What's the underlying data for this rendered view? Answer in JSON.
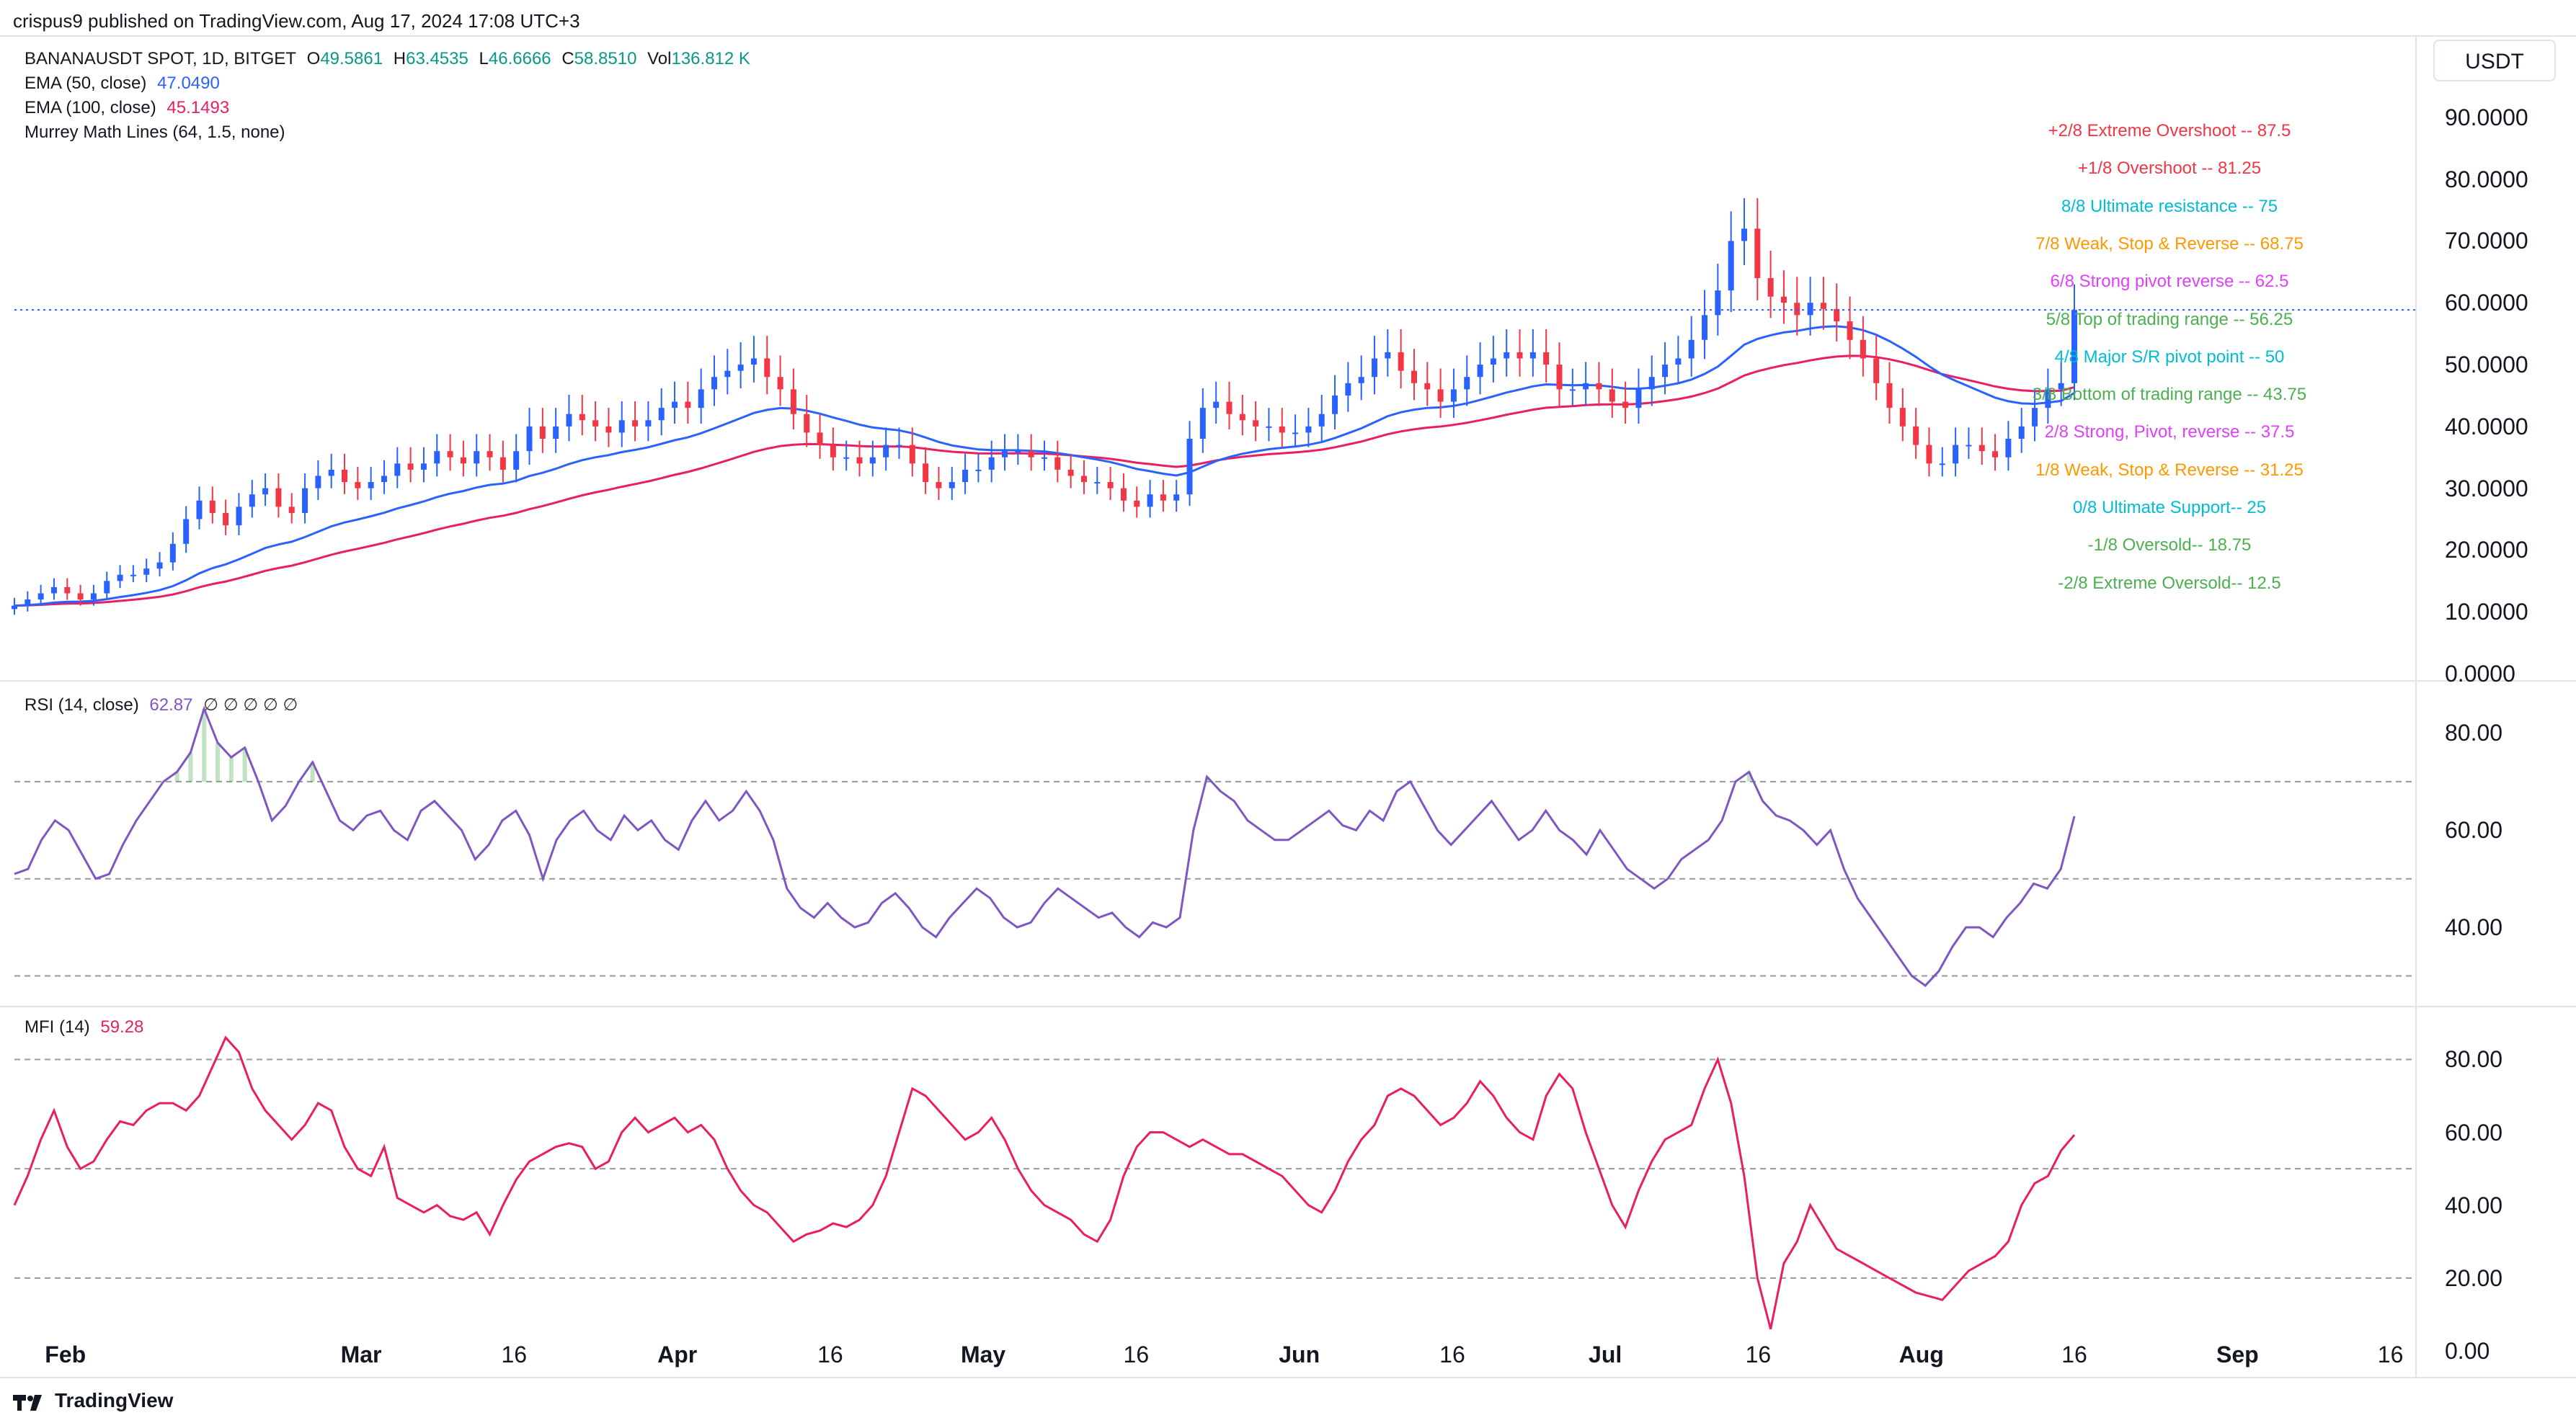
{
  "publisher_line": "crispus9 published on TradingView.com, Aug 17, 2024 17:08 UTC+3",
  "symbol_line": {
    "symbol": "BANANAUSDT SPOT, 1D, BITGET",
    "o_label": "O",
    "o": "49.5861",
    "h_label": "H",
    "h": "63.4535",
    "l_label": "L",
    "l": "46.6666",
    "c_label": "C",
    "c": "58.8510",
    "vol_label": "Vol",
    "vol": "136.812 K"
  },
  "indicators": {
    "ema50_label": "EMA (50, close)",
    "ema50_value": "47.0490",
    "ema100_label": "EMA (100, close)",
    "ema100_value": "45.1493",
    "murrey_label": "Murrey Math Lines (64, 1.5, none)",
    "rsi_label": "RSI (14, close)",
    "rsi_value": "62.87",
    "rsi_flags": "∅ ∅ ∅ ∅ ∅",
    "mfi_label": "MFI (14)",
    "mfi_value": "59.28"
  },
  "unit_label": "USDT",
  "brand": "TradingView",
  "colors": {
    "up": "#2962ff",
    "down": "#f23645",
    "ema50": "#2962ff",
    "ema100": "#e91e63",
    "rsi": "#7e57c2",
    "mfi": "#e91e63",
    "price_line": "#2962ff"
  },
  "chart_data": [
    {
      "type": "candlestick",
      "name": "BANANAUSDT SPOT, 1D, BITGET",
      "x_labels": [
        "Feb",
        "Mar",
        "16",
        "Apr",
        "16",
        "May",
        "16",
        "Jun",
        "16",
        "Jul",
        "16",
        "Aug",
        "16",
        "Sep",
        "16"
      ],
      "x_dates": [
        "2024-02-01",
        "2024-03-01",
        "2024-03-16",
        "2024-04-01",
        "2024-04-16",
        "2024-05-01",
        "2024-05-16",
        "2024-06-01",
        "2024-06-16",
        "2024-07-01",
        "2024-07-16",
        "2024-08-01",
        "2024-08-16",
        "2024-09-01",
        "2024-09-16"
      ],
      "y_ticks": [
        "90.0000",
        "80.0000",
        "70.0000",
        "60.0000",
        "50.0000",
        "40.0000",
        "30.0000",
        "20.0000",
        "10.0000",
        "0.0000"
      ],
      "ylim": [
        0,
        95
      ],
      "close_series": [
        11,
        12,
        13,
        14,
        13,
        12,
        13,
        15,
        16,
        16,
        17,
        18,
        21,
        25,
        28,
        26,
        24,
        27,
        29,
        30,
        27,
        26,
        30,
        32,
        33,
        31,
        30,
        31,
        32,
        34,
        33,
        34,
        36,
        35,
        34,
        36,
        35,
        33,
        36,
        40,
        38,
        40,
        42,
        41,
        40,
        39,
        41,
        40,
        41,
        43,
        44,
        43,
        46,
        48,
        49,
        50,
        51,
        48,
        46,
        42,
        39,
        37,
        35,
        35,
        34,
        35,
        37,
        37,
        34,
        31,
        30,
        31,
        33,
        33,
        35,
        36,
        36,
        35,
        35,
        33,
        32,
        31,
        31,
        30,
        28,
        27,
        29,
        28,
        29,
        38,
        43,
        44,
        42,
        41,
        40,
        40,
        39,
        39,
        40,
        42,
        45,
        47,
        48,
        51,
        52,
        49,
        47,
        46,
        44,
        46,
        48,
        50,
        51,
        52,
        51,
        52,
        50,
        46,
        46,
        47,
        46,
        44,
        43,
        46,
        48,
        50,
        51,
        54,
        58,
        62,
        70,
        72,
        64,
        61,
        60,
        58,
        60,
        59,
        57,
        54,
        51,
        47,
        43,
        40,
        37,
        34,
        34,
        37,
        37,
        36,
        35,
        38,
        40,
        43,
        46,
        47,
        58.85
      ],
      "ema50_last": 47.049,
      "ema100_last": 45.1493,
      "last_price": 58.851
    },
    {
      "type": "table",
      "name": "Murrey Math Lines",
      "rows": [
        {
          "label": "+2/8 Extreme Overshoot --",
          "value": "87.5",
          "color": "#f23645"
        },
        {
          "label": "+1/8 Overshoot --",
          "value": "81.25",
          "color": "#f23645"
        },
        {
          "label": "8/8 Ultimate resistance --",
          "value": "75",
          "color": "#00bcd4"
        },
        {
          "label": "7/8 Weak, Stop & Reverse --",
          "value": "68.75",
          "color": "#ff9800"
        },
        {
          "label": "6/8 Strong pivot reverse --",
          "value": "62.5",
          "color": "#e040fb"
        },
        {
          "label": "5/8 Top of trading range --",
          "value": "56.25",
          "color": "#4caf50"
        },
        {
          "label": "4/8 Major S/R pivot point --",
          "value": "50",
          "color": "#00bcd4"
        },
        {
          "label": "3/8 Bottom of trading range --",
          "value": "43.75",
          "color": "#4caf50"
        },
        {
          "label": "2/8 Strong, Pivot, reverse --",
          "value": "37.5",
          "color": "#e040fb"
        },
        {
          "label": "1/8 Weak, Stop & Reverse --",
          "value": "31.25",
          "color": "#ff9800"
        },
        {
          "label": "0/8 Ultimate Support--",
          "value": "25",
          "color": "#00bcd4"
        },
        {
          "label": "-1/8 Oversold--",
          "value": "18.75",
          "color": "#4caf50"
        },
        {
          "label": "-2/8 Extreme Oversold--",
          "value": "12.5",
          "color": "#4caf50"
        }
      ]
    },
    {
      "type": "line",
      "name": "RSI (14, close)",
      "y_ticks": [
        "80.00",
        "60.00",
        "40.00"
      ],
      "ylim": [
        24,
        90
      ],
      "bands": [
        70,
        50,
        30
      ],
      "values": [
        51,
        52,
        58,
        62,
        60,
        55,
        50,
        51,
        57,
        62,
        66,
        70,
        72,
        76,
        85,
        78,
        75,
        77,
        70,
        62,
        65,
        70,
        74,
        68,
        62,
        60,
        63,
        64,
        60,
        58,
        64,
        66,
        63,
        60,
        54,
        57,
        62,
        64,
        59,
        50,
        58,
        62,
        64,
        60,
        58,
        63,
        60,
        62,
        58,
        56,
        62,
        66,
        62,
        64,
        68,
        64,
        58,
        48,
        44,
        42,
        45,
        42,
        40,
        41,
        45,
        47,
        44,
        40,
        38,
        42,
        45,
        48,
        46,
        42,
        40,
        41,
        45,
        48,
        46,
        44,
        42,
        43,
        40,
        38,
        41,
        40,
        42,
        60,
        71,
        68,
        66,
        62,
        60,
        58,
        58,
        60,
        62,
        64,
        61,
        60,
        64,
        62,
        68,
        70,
        65,
        60,
        57,
        60,
        63,
        66,
        62,
        58,
        60,
        64,
        60,
        58,
        55,
        60,
        56,
        52,
        50,
        48,
        50,
        54,
        56,
        58,
        62,
        70,
        72,
        66,
        63,
        62,
        60,
        57,
        60,
        52,
        46,
        42,
        38,
        34,
        30,
        28,
        31,
        36,
        40,
        40,
        38,
        42,
        45,
        49,
        48,
        52,
        62.87
      ]
    },
    {
      "type": "line",
      "name": "MFI (14)",
      "y_ticks": [
        "80.00",
        "60.00",
        "40.00",
        "20.00",
        "0.00"
      ],
      "ylim": [
        0,
        88
      ],
      "bands": [
        80,
        50,
        20
      ],
      "values": [
        40,
        48,
        58,
        66,
        56,
        50,
        52,
        58,
        63,
        62,
        66,
        68,
        68,
        66,
        70,
        78,
        86,
        82,
        72,
        66,
        62,
        58,
        62,
        68,
        66,
        56,
        50,
        48,
        56,
        42,
        40,
        38,
        40,
        37,
        36,
        38,
        32,
        40,
        47,
        52,
        54,
        56,
        57,
        56,
        50,
        52,
        60,
        64,
        60,
        62,
        64,
        60,
        62,
        58,
        50,
        44,
        40,
        38,
        34,
        30,
        32,
        33,
        35,
        34,
        36,
        40,
        48,
        60,
        72,
        70,
        66,
        62,
        58,
        60,
        64,
        58,
        50,
        44,
        40,
        38,
        36,
        32,
        30,
        36,
        48,
        56,
        60,
        60,
        58,
        56,
        58,
        56,
        54,
        54,
        52,
        50,
        48,
        44,
        40,
        38,
        44,
        52,
        58,
        62,
        70,
        72,
        70,
        66,
        62,
        64,
        68,
        74,
        70,
        64,
        60,
        58,
        70,
        76,
        72,
        60,
        50,
        40,
        34,
        44,
        52,
        58,
        60,
        62,
        72,
        80,
        68,
        48,
        20,
        6,
        24,
        30,
        40,
        34,
        28,
        26,
        24,
        22,
        20,
        18,
        16,
        15,
        14,
        18,
        22,
        24,
        26,
        30,
        40,
        46,
        48,
        55,
        59.28
      ]
    }
  ]
}
